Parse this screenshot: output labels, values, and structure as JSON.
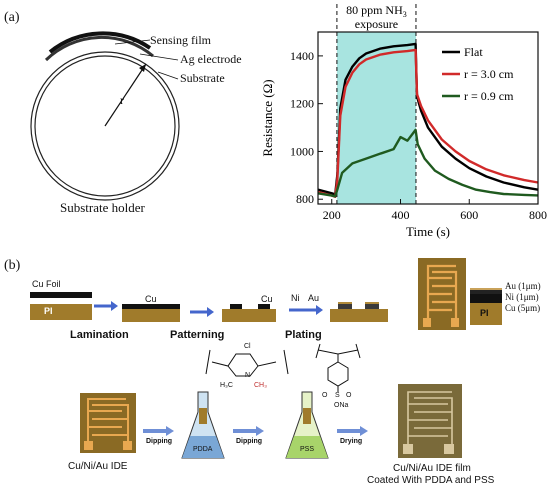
{
  "panel_a": {
    "label": "(a)",
    "schematic": {
      "sensing_film": "Sensing film",
      "ag_electrode": "Ag electrode",
      "substrate": "Substrate",
      "radius": "r",
      "holder": "Substrate holder"
    },
    "chart_data": {
      "type": "line",
      "xlabel": "Time (s)",
      "ylabel": "Resistance (Ω)",
      "xlim": [
        160,
        800
      ],
      "ylim": [
        780,
        1500
      ],
      "xticks": [
        200,
        400,
        600,
        800
      ],
      "yticks": [
        800,
        1000,
        1200,
        1400
      ],
      "annotation": "80 ppm NH",
      "annotation_sub": "3",
      "annotation_line2": "exposure",
      "exposure_window": [
        215,
        445
      ],
      "legend_position": "top-right",
      "series": [
        {
          "name": "Flat",
          "color": "#000000",
          "x": [
            160,
            200,
            210,
            216,
            225,
            240,
            260,
            280,
            300,
            340,
            380,
            420,
            444,
            448,
            460,
            480,
            520,
            560,
            600,
            650,
            700,
            760,
            800
          ],
          "y": [
            840,
            825,
            820,
            900,
            1180,
            1300,
            1355,
            1390,
            1410,
            1430,
            1440,
            1445,
            1450,
            1230,
            1170,
            1100,
            1020,
            970,
            930,
            895,
            870,
            850,
            840
          ]
        },
        {
          "name": "r = 3.0 cm",
          "color": "#d12a2a",
          "x": [
            160,
            200,
            210,
            216,
            225,
            240,
            260,
            280,
            300,
            340,
            380,
            420,
            444,
            448,
            460,
            480,
            520,
            560,
            600,
            650,
            700,
            760,
            800
          ],
          "y": [
            830,
            815,
            810,
            880,
            1150,
            1270,
            1330,
            1365,
            1385,
            1405,
            1415,
            1420,
            1425,
            1240,
            1190,
            1130,
            1050,
            1000,
            960,
            925,
            900,
            880,
            870
          ]
        },
        {
          "name": "r = 0.9 cm",
          "color": "#1f5a1f",
          "x": [
            160,
            200,
            210,
            216,
            230,
            260,
            300,
            340,
            380,
            400,
            420,
            444,
            450,
            470,
            500,
            540,
            580,
            620,
            660,
            700,
            760,
            800
          ],
          "y": [
            825,
            815,
            812,
            840,
            910,
            950,
            970,
            990,
            1010,
            1060,
            1045,
            1090,
            1030,
            970,
            920,
            885,
            860,
            840,
            830,
            822,
            818,
            816
          ]
        }
      ]
    }
  },
  "panel_b": {
    "label": "(b)",
    "cu_foil": "Cu Foil",
    "pi": "PI",
    "cu": "Cu",
    "cu2": "Cu",
    "ni": "Ni",
    "au": "Au",
    "lamination": "Lamination",
    "patterning": "Patterning",
    "plating": "Plating",
    "layer_au": "Au (1μm)",
    "layer_ni": "Ni  (1μm)",
    "layer_cu": "Cu  (5μm)",
    "layer_pi": "PI",
    "pdda_cl": "Cl",
    "pdda_n": "N",
    "pdda_h3c": "H₃C",
    "pdda_ch3": "CH₃",
    "pss_s": "S",
    "pss_o1": "O",
    "pss_o2": "O",
    "pss_ona": "ONa",
    "dipping1": "Dipping",
    "dipping2": "Dipping",
    "drying": "Drying",
    "pdda": "PDDA",
    "pss": "PSS",
    "ide_label": "Cu/Ni/Au IDE",
    "coated_label_1": "Cu/Ni/Au IDE film",
    "coated_label_2": "Coated With PDDA and PSS"
  }
}
